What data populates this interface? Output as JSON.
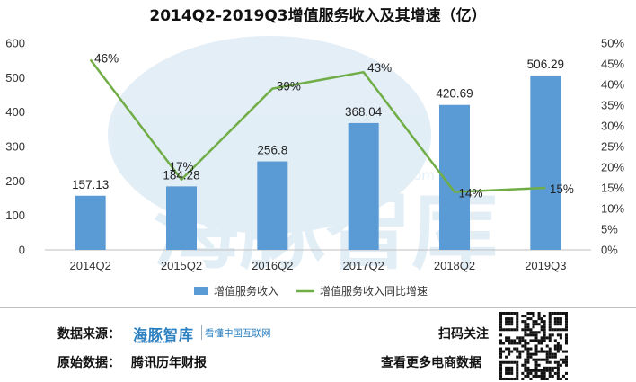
{
  "chart_data": {
    "type": "bar+line",
    "title": "2014Q2-2019Q3增值服务收入及其增速（亿）",
    "categories": [
      "2014Q2",
      "2015Q2",
      "2016Q2",
      "2017Q2",
      "2018Q2",
      "2019Q3"
    ],
    "series": [
      {
        "name": "增值服务收入",
        "type": "bar",
        "axis": "left",
        "values": [
          157.13,
          184.28,
          256.8,
          368.04,
          420.69,
          506.29
        ],
        "labels": [
          "157.13",
          "184.28",
          "256.8",
          "368.04",
          "420.69",
          "506.29"
        ],
        "color": "#5b9bd5"
      },
      {
        "name": "增值服务收入同比增速",
        "type": "line",
        "axis": "right",
        "values": [
          46,
          17,
          39,
          43,
          14,
          15
        ],
        "labels": [
          "46%",
          "17%",
          "39%",
          "43%",
          "14%",
          "15%"
        ],
        "color": "#70ad47"
      }
    ],
    "y_left": {
      "min": 0,
      "max": 600,
      "step": 100,
      "ticks": [
        "0",
        "100",
        "200",
        "300",
        "400",
        "500",
        "600"
      ]
    },
    "y_right": {
      "min": 0,
      "max": 50,
      "step": 5,
      "ticks": [
        "0%",
        "5%",
        "10%",
        "15%",
        "20%",
        "25%",
        "30%",
        "35%",
        "40%",
        "45%",
        "50%"
      ]
    },
    "grid": false,
    "legend": "bottom"
  },
  "watermark": {
    "text": "海豚智库",
    "url": "haitunzhiku.com"
  },
  "footer": {
    "source_label": "数据来源：",
    "brand_name": "海豚智库",
    "brand_slogan": "看懂中国互联网",
    "brand_url": "haitunzhiku.com",
    "original_label": "原始数据：",
    "original_value": "腾讯历年财报",
    "scan_text": "扫码关注",
    "more_text": "查看更多电商数据"
  }
}
